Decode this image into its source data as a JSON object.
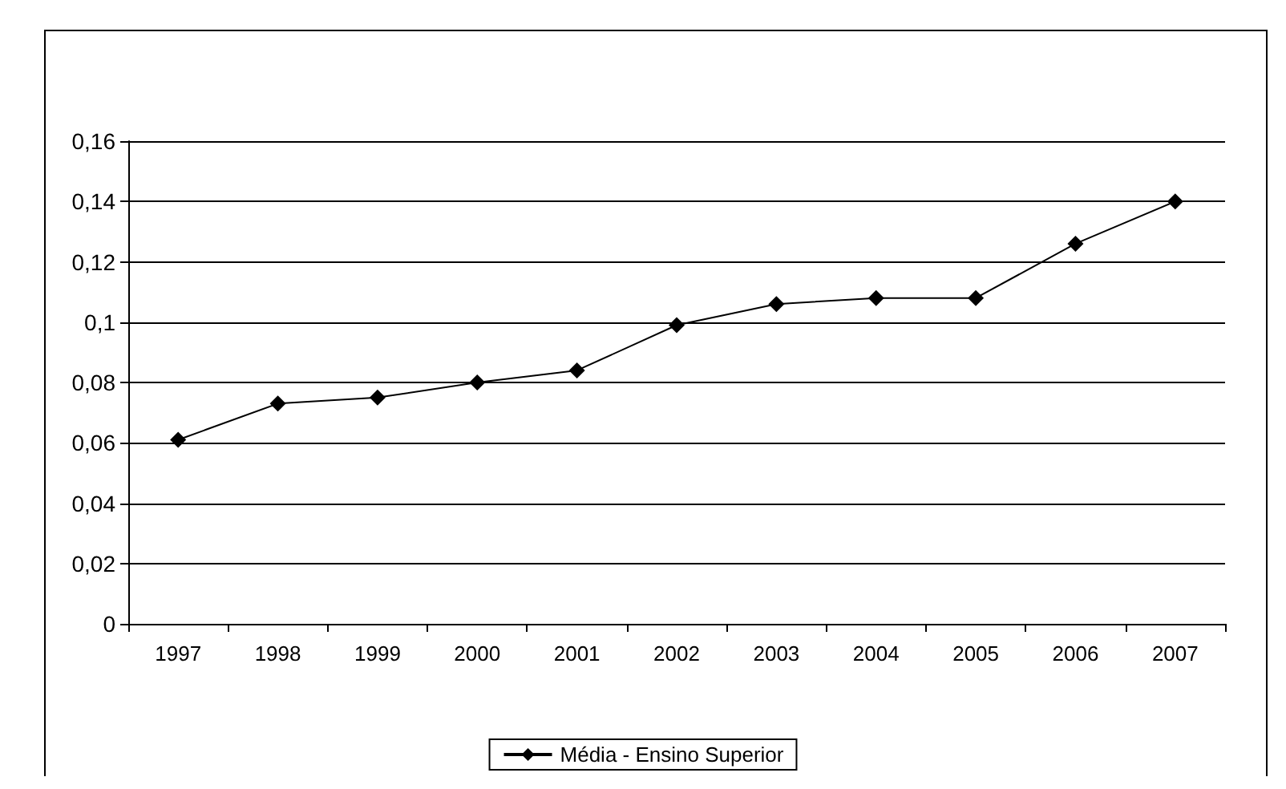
{
  "chart_data": {
    "type": "line",
    "categories": [
      "1997",
      "1998",
      "1999",
      "2000",
      "2001",
      "2002",
      "2003",
      "2004",
      "2005",
      "2006",
      "2007"
    ],
    "series": [
      {
        "name": "Média - Ensino Superior",
        "color": "#000000",
        "values": [
          0.061,
          0.073,
          0.075,
          0.08,
          0.084,
          0.099,
          0.106,
          0.108,
          0.108,
          0.126,
          0.14
        ]
      }
    ],
    "ylim": [
      0,
      0.16
    ],
    "yticks": [
      0,
      {
        "value": 0.02,
        "label": "0,02"
      },
      {
        "value": 0.04,
        "label": "0,04"
      },
      {
        "value": 0.06,
        "label": "0,06"
      },
      {
        "value": 0.08,
        "label": "0,08"
      },
      {
        "value": 0.1,
        "label": "0,1"
      },
      {
        "value": 0.12,
        "label": "0,12"
      },
      {
        "value": 0.14,
        "label": "0,14"
      },
      {
        "value": 0.16,
        "label": "0,16"
      }
    ],
    "grid": "y",
    "legend": "bottom",
    "marker": "diamond",
    "line_style": "solid"
  }
}
